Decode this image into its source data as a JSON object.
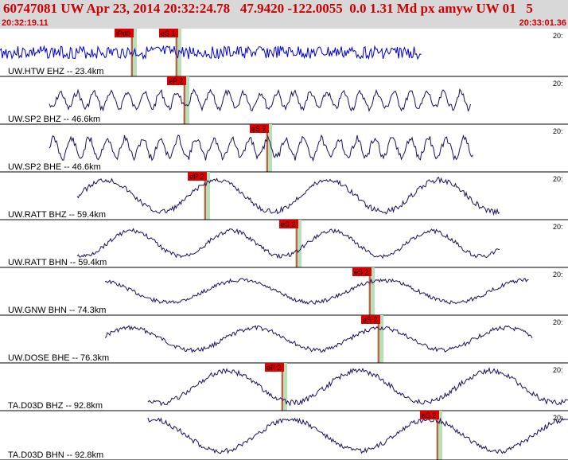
{
  "header": {
    "title": "60747081 UW Apr 23, 2014 20:32:24.78   47.9420 -122.0055  0.0 1.31 Md px amyw UW 01   5",
    "start_time": "20:32:19.11",
    "end_time": "20:33:01.36"
  },
  "colors": {
    "header_bg": "#d8d8d8",
    "header_text": "#cc0000",
    "trace": "#1a1060",
    "trace_first": "#0000cc",
    "pick": "#dd0000",
    "pick_window": "#b8e0b8",
    "divider": "#000000"
  },
  "chart_data": {
    "type": "line",
    "title": "60747081 UW Apr 23, 2014 20:32:24.78   47.9420 -122.0055  0.0 1.31 Md px amyw UW 01   5",
    "x_start": "20:32:19.11",
    "x_end": "20:33:01.36",
    "tick_label": "20:",
    "series": [
      {
        "name": "UW.HTW EHZ -- 23.4km",
        "picks": [
          {
            "label": "iPd0"
          },
          {
            "label": "eS 1"
          }
        ]
      },
      {
        "name": "UW.SP2 BHZ -- 46.6km",
        "picks": [
          {
            "label": "eP 2"
          }
        ]
      },
      {
        "name": "UW.SP2 BHE -- 46.6km",
        "picks": [
          {
            "label": "eS 2"
          }
        ]
      },
      {
        "name": "UW.RATT BHZ -- 59.4km",
        "picks": [
          {
            "label": "eP 2"
          }
        ]
      },
      {
        "name": "UW.RATT BHN -- 59.4km",
        "picks": [
          {
            "label": "eS 2"
          }
        ]
      },
      {
        "name": "UW.GNW BHN -- 74.3km",
        "picks": [
          {
            "label": "eS 2"
          }
        ]
      },
      {
        "name": "UW.DOSE BHE -- 76.3km",
        "picks": [
          {
            "label": "eS 2"
          }
        ]
      },
      {
        "name": "TA.D03D BHZ -- 92.8km",
        "picks": [
          {
            "label": "eP 2"
          }
        ]
      },
      {
        "name": "TA.D03D BHN -- 92.8km",
        "picks": [
          {
            "label": "eS 2"
          }
        ]
      }
    ]
  }
}
